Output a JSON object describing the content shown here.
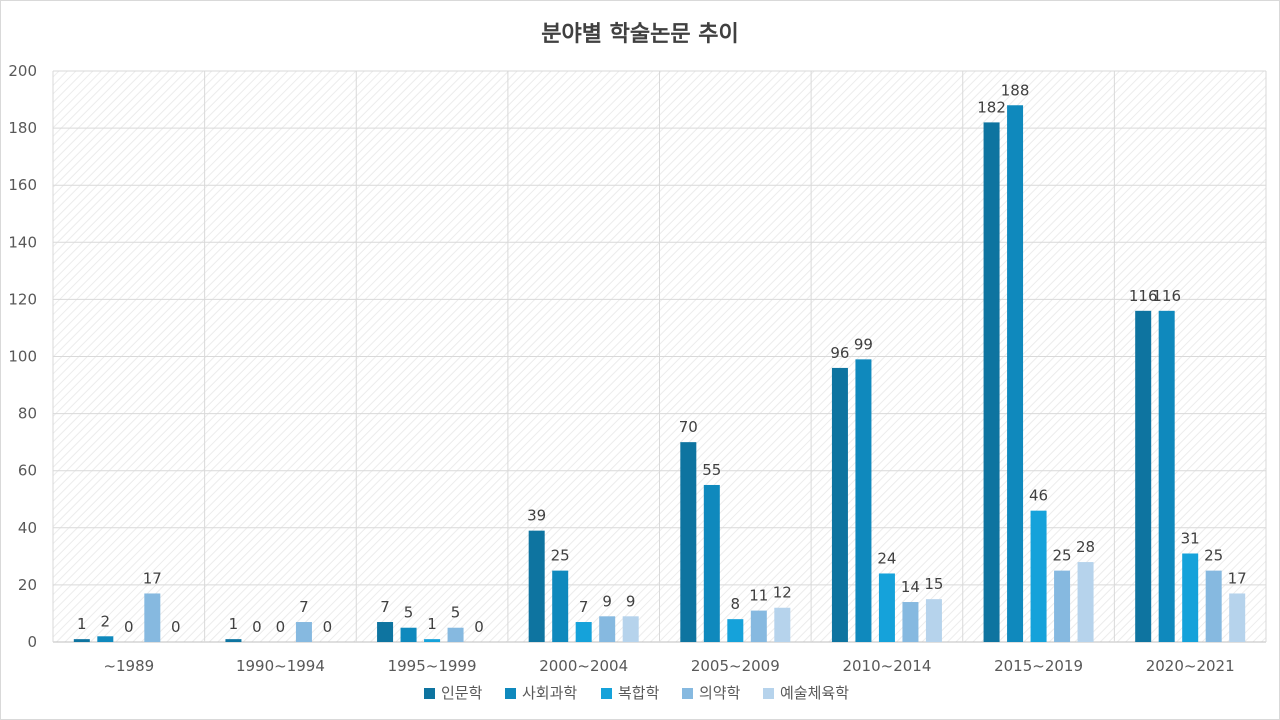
{
  "chart_data": {
    "type": "bar",
    "title": "분야별 학술논문 추이",
    "categories": [
      "~1989",
      "1990~1994",
      "1995~1999",
      "2000~2004",
      "2005~2009",
      "2010~2014",
      "2015~2019",
      "2020~2021"
    ],
    "series": [
      {
        "name": "인문학",
        "color": "#0e74a0",
        "values": [
          1,
          1,
          7,
          39,
          70,
          96,
          182,
          116
        ]
      },
      {
        "name": "사회과학",
        "color": "#0f89bd",
        "values": [
          2,
          0,
          5,
          25,
          55,
          99,
          188,
          116
        ]
      },
      {
        "name": "복합학",
        "color": "#15a2da",
        "values": [
          0,
          0,
          1,
          7,
          8,
          24,
          46,
          31
        ]
      },
      {
        "name": "의약학",
        "color": "#86b9e0",
        "values": [
          17,
          7,
          5,
          9,
          11,
          14,
          25,
          25
        ]
      },
      {
        "name": "예술체육학",
        "color": "#b6d3ec",
        "values": [
          0,
          0,
          0,
          9,
          12,
          15,
          28,
          17
        ]
      }
    ],
    "ylim": [
      0,
      200
    ],
    "yticks": [
      0,
      20,
      40,
      60,
      80,
      100,
      120,
      140,
      160,
      180,
      200
    ],
    "grid": true,
    "legend": "bottom",
    "xlabel": "",
    "ylabel": ""
  }
}
